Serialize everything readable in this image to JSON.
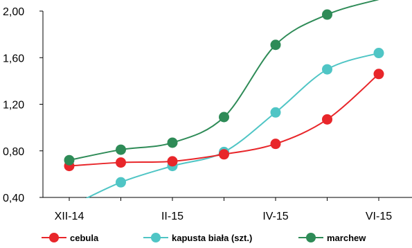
{
  "chart_data": {
    "type": "line",
    "x": [
      0,
      1,
      2,
      3,
      4,
      5,
      6
    ],
    "x_tick_labels": [
      {
        "x": 0,
        "label": "XII-14"
      },
      {
        "x": 2,
        "label": "II-15"
      },
      {
        "x": 4,
        "label": "IV-15"
      },
      {
        "x": 6,
        "label": "VI-15"
      }
    ],
    "ylim": [
      0.4,
      2.0
    ],
    "yticks": [
      0.4,
      0.8,
      1.2,
      1.6,
      2.0
    ],
    "ytick_labels": [
      "0,40",
      "0,80",
      "1,20",
      "1,60",
      "2,00"
    ],
    "grid": false,
    "legend_position": "bottom",
    "series": [
      {
        "name": "cebula",
        "color": "#e8262a",
        "values": [
          0.67,
          0.7,
          0.71,
          0.77,
          0.86,
          1.07,
          1.46
        ]
      },
      {
        "name": "kapusta biała (szt.)",
        "color": "#4fc5c5",
        "values": [
          0.32,
          0.53,
          0.67,
          0.79,
          1.13,
          1.5,
          1.64
        ]
      },
      {
        "name": "marchew",
        "color": "#2e8b57",
        "values": [
          0.72,
          0.81,
          0.87,
          1.09,
          1.71,
          1.97,
          2.1
        ]
      }
    ],
    "draw_order": [
      1,
      0,
      2
    ]
  }
}
